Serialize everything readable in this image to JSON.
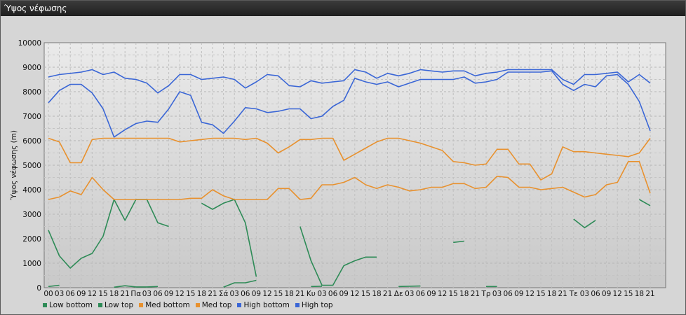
{
  "window": {
    "title": "Ύψος νέφωσης"
  },
  "chart_data": {
    "type": "line",
    "title": "",
    "ylabel": "Ύψος νέφωσης (m)",
    "xlabel": "",
    "ylim": [
      0,
      10000
    ],
    "yticks": [
      0,
      1000,
      2000,
      3000,
      4000,
      5000,
      6000,
      7000,
      8000,
      9000,
      10000
    ],
    "grid": true,
    "legend_position": "bottom-left",
    "x_tick_labels": [
      "00",
      "03",
      "06",
      "09",
      "12",
      "15",
      "18",
      "21",
      "Πα",
      "03",
      "06",
      "09",
      "12",
      "15",
      "18",
      "21",
      "Σά",
      "03",
      "06",
      "09",
      "12",
      "15",
      "18",
      "21",
      "Κυ",
      "03",
      "06",
      "09",
      "12",
      "15",
      "18",
      "21",
      "Δε",
      "03",
      "06",
      "09",
      "12",
      "15",
      "18",
      "21",
      "Τρ",
      "03",
      "06",
      "09",
      "12",
      "15",
      "18",
      "21",
      "Τε",
      "03",
      "06",
      "09",
      "12",
      "15",
      "18",
      "21"
    ],
    "series": [
      {
        "name": "Low bottom",
        "color": "#2e8b57",
        "values": [
          50,
          100,
          null,
          null,
          null,
          null,
          20,
          80,
          30,
          30,
          50,
          null,
          null,
          null,
          null,
          null,
          20,
          200,
          200,
          300,
          null,
          null,
          null,
          null,
          50,
          60,
          null,
          null,
          null,
          null,
          null,
          null,
          50,
          60,
          70,
          null,
          null,
          null,
          null,
          null,
          50,
          50,
          null,
          null,
          null,
          null,
          null,
          null,
          null,
          null,
          null,
          null,
          null,
          null,
          null,
          null
        ]
      },
      {
        "name": "Low top",
        "color": "#2e8b57",
        "values": [
          2350,
          1300,
          800,
          1200,
          1400,
          2100,
          3600,
          2750,
          3600,
          3600,
          2650,
          2500,
          null,
          null,
          3450,
          3200,
          3450,
          3600,
          2650,
          450,
          null,
          null,
          null,
          2500,
          1100,
          100,
          100,
          900,
          1100,
          1250,
          1250,
          null,
          null,
          null,
          null,
          null,
          null,
          1850,
          1900,
          null,
          null,
          null,
          null,
          null,
          null,
          null,
          null,
          null,
          2800,
          2450,
          2750,
          null,
          null,
          null,
          3600,
          3350
        ]
      },
      {
        "name": "Med bottom",
        "color": "#e8912e",
        "values": [
          3600,
          3700,
          3950,
          3800,
          4500,
          4000,
          3600,
          3600,
          3600,
          3600,
          3600,
          3600,
          3600,
          3650,
          3650,
          4000,
          3750,
          3600,
          3600,
          3600,
          3600,
          4050,
          4050,
          3600,
          3650,
          4200,
          4200,
          4300,
          4500,
          4200,
          4050,
          4200,
          4100,
          3950,
          4000,
          4100,
          4100,
          4250,
          4250,
          4050,
          4100,
          4550,
          4500,
          4100,
          4100,
          4000,
          4050,
          4100,
          3900,
          3700,
          3800,
          4200,
          4300,
          5150,
          5150,
          3850
        ]
      },
      {
        "name": "Med top",
        "color": "#e8912e",
        "values": [
          6100,
          5950,
          5100,
          5100,
          6050,
          6100,
          6100,
          6100,
          6100,
          6100,
          6100,
          6100,
          5950,
          6000,
          6050,
          6100,
          6100,
          6100,
          6050,
          6100,
          5900,
          5500,
          5750,
          6050,
          6050,
          6100,
          6100,
          5200,
          5450,
          5700,
          5950,
          6100,
          6100,
          6000,
          5900,
          5750,
          5600,
          5150,
          5100,
          5000,
          5050,
          5650,
          5650,
          5050,
          5050,
          4400,
          4650,
          5750,
          5550,
          5550,
          5500,
          5450,
          5400,
          5350,
          5500,
          6100
        ]
      },
      {
        "name": "High bottom",
        "color": "#3a66d6",
        "values": [
          7550,
          8050,
          8300,
          8300,
          7950,
          7300,
          6150,
          6450,
          6700,
          6800,
          6750,
          7300,
          8000,
          7850,
          6750,
          6650,
          6300,
          6800,
          7350,
          7300,
          7150,
          7200,
          7300,
          7300,
          6900,
          7000,
          7400,
          7650,
          8550,
          8400,
          8300,
          8400,
          8200,
          8350,
          8500,
          8500,
          8500,
          8500,
          8600,
          8350,
          8400,
          8500,
          8800,
          8800,
          8800,
          8800,
          8850,
          8300,
          8050,
          8300,
          8200,
          8650,
          8700,
          8300,
          7600,
          6400
        ]
      },
      {
        "name": "High top",
        "color": "#3a66d6",
        "values": [
          8600,
          8700,
          8750,
          8800,
          8900,
          8700,
          8800,
          8550,
          8500,
          8350,
          7950,
          8250,
          8700,
          8700,
          8500,
          8550,
          8600,
          8500,
          8150,
          8400,
          8700,
          8650,
          8250,
          8200,
          8450,
          8350,
          8400,
          8450,
          8900,
          8800,
          8550,
          8750,
          8650,
          8750,
          8900,
          8850,
          8800,
          8850,
          8850,
          8650,
          8750,
          8800,
          8900,
          8900,
          8900,
          8900,
          8900,
          8500,
          8300,
          8700,
          8700,
          8750,
          8800,
          8400,
          8700,
          8350
        ]
      }
    ]
  }
}
